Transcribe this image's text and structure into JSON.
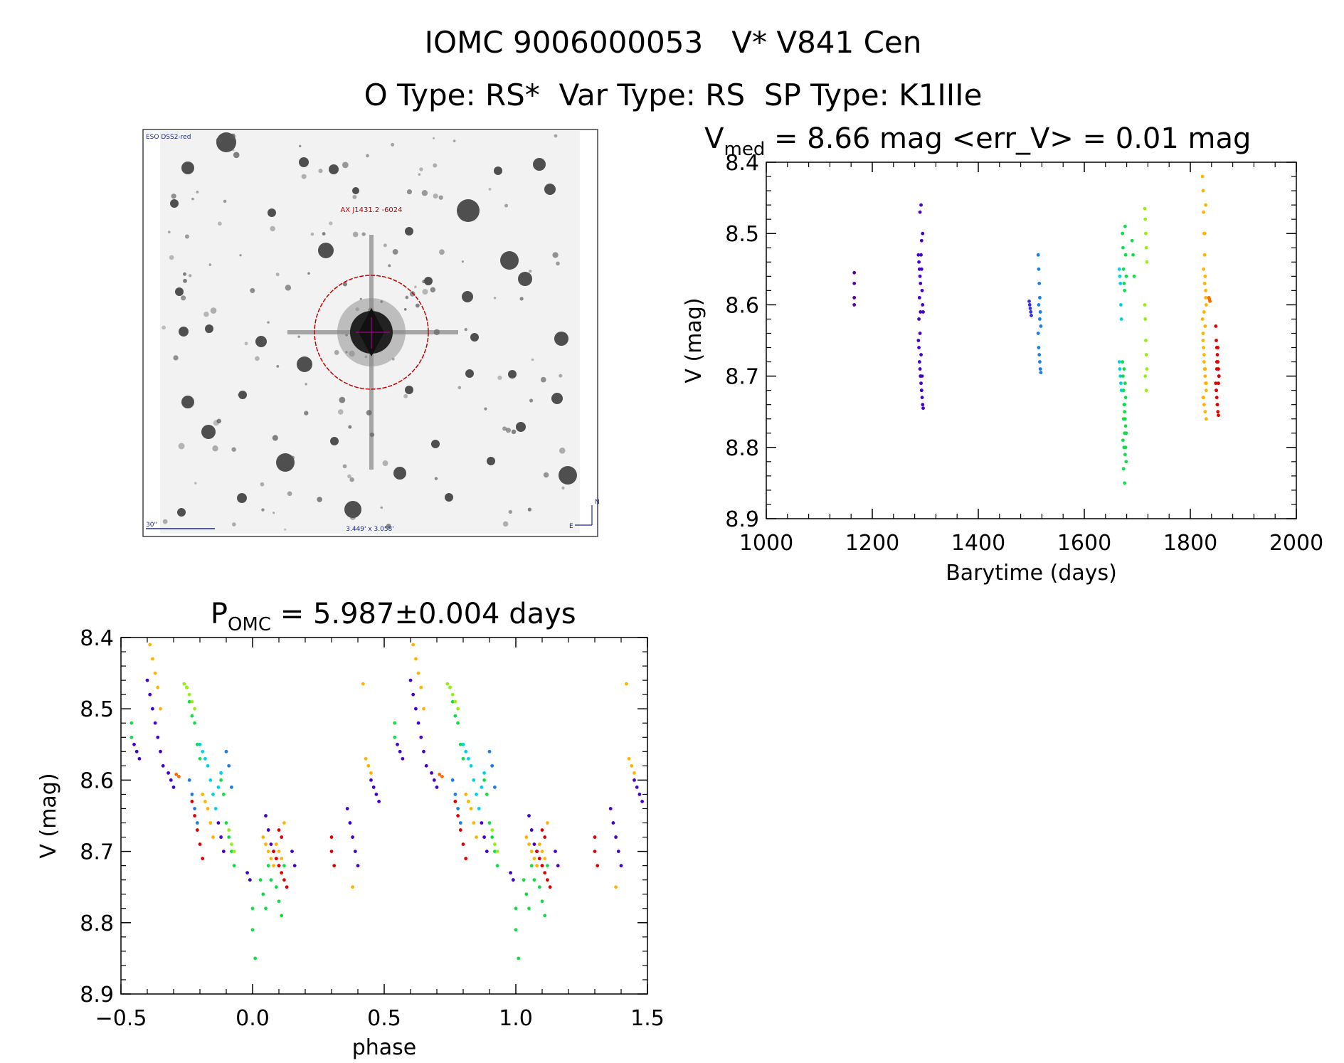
{
  "header": {
    "title_line1": "IOMC 9006000053   V* V841 Cen",
    "title_line2": "O Type: RS*  Var Type: RS  SP Type: K1IIIe"
  },
  "finder_chart": {
    "survey_label": "ESO DSS2-red",
    "target_label": "AX J1431.2 -6024",
    "scale_label": "30\"",
    "fov_label": "3.449' x 3.058'",
    "north_label": "N",
    "east_label": "E"
  },
  "colors": {
    "purple": "#5500aa",
    "indigo": "#4400cc",
    "blue": "#1e7de0",
    "cyan": "#00d0f0",
    "green": "#11dd44",
    "lime": "#99ee11",
    "orange": "#ffb300",
    "deep_orange": "#ff6a00",
    "red": "#e00000",
    "circle": "#c00000",
    "crosshair": "#aa0088"
  },
  "chart_data": [
    {
      "id": "light_curve",
      "type": "scatter",
      "title_main": "V",
      "title_sub": "med",
      "title_rest": " = 8.66 mag <err_V> = 0.01 mag",
      "xlabel": "Barytime (days)",
      "ylabel": "V (mag)",
      "xlim": [
        1000,
        2000
      ],
      "ylim": [
        8.9,
        8.4
      ],
      "xticks": [
        1000,
        1200,
        1400,
        1600,
        1800,
        2000
      ],
      "xtick_labels": [
        "1000",
        "1200",
        "1400",
        "1600",
        "1800",
        "2000"
      ],
      "yticks": [
        8.4,
        8.5,
        8.6,
        8.7,
        8.8,
        8.9
      ],
      "ytick_labels": [
        "8.4",
        "8.5",
        "8.6",
        "8.7",
        "8.8",
        "8.9"
      ],
      "series": [
        {
          "name": "season-1",
          "color": "#5500aa",
          "x": [
            1166,
            1166,
            1166,
            1166
          ],
          "y": [
            8.555,
            8.57,
            8.59,
            8.6
          ]
        },
        {
          "name": "season-2",
          "color": "#4400cc",
          "x": [
            1287,
            1288,
            1289,
            1290,
            1291,
            1292,
            1293,
            1294,
            1295,
            1296,
            1287,
            1288,
            1289,
            1290,
            1291,
            1292,
            1293,
            1294,
            1295,
            1296,
            1288,
            1290,
            1292,
            1294,
            1289,
            1291,
            1293,
            1295,
            1290,
            1292,
            1291,
            1293
          ],
          "y": [
            8.53,
            8.54,
            8.55,
            8.56,
            8.57,
            8.53,
            8.55,
            8.58,
            8.6,
            8.61,
            8.65,
            8.66,
            8.68,
            8.69,
            8.7,
            8.71,
            8.72,
            8.73,
            8.74,
            8.745,
            8.62,
            8.64,
            8.67,
            8.7,
            8.59,
            8.61,
            8.51,
            8.5,
            8.47,
            8.46,
            8.7,
            8.72
          ]
        },
        {
          "name": "season-3",
          "color": "#3030dd",
          "x": [
            1496,
            1497,
            1498,
            1499,
            1500
          ],
          "y": [
            8.595,
            8.6,
            8.605,
            8.61,
            8.615
          ]
        },
        {
          "name": "season-4",
          "color": "#1e7de0",
          "x": [
            1513,
            1514,
            1515,
            1516,
            1517,
            1518,
            1513,
            1514,
            1515,
            1516,
            1517,
            1518,
            1514,
            1516
          ],
          "y": [
            8.53,
            8.55,
            8.57,
            8.59,
            8.61,
            8.63,
            8.64,
            8.66,
            8.67,
            8.68,
            8.69,
            8.695,
            8.6,
            8.62
          ]
        },
        {
          "name": "season-5",
          "color": "#00d0f0",
          "x": [
            1666,
            1667,
            1668,
            1669,
            1670,
            1666,
            1667,
            1668,
            1669,
            1670
          ],
          "y": [
            8.55,
            8.56,
            8.57,
            8.6,
            8.62,
            8.68,
            8.69,
            8.7,
            8.71,
            8.72
          ]
        },
        {
          "name": "season-6",
          "color": "#11dd44",
          "x": [
            1672,
            1673,
            1674,
            1675,
            1676,
            1677,
            1678,
            1679,
            1672,
            1673,
            1674,
            1675,
            1676,
            1677,
            1678,
            1679,
            1673,
            1675,
            1677,
            1679,
            1674,
            1676,
            1678,
            1675,
            1677,
            1676,
            1690,
            1692,
            1694,
            1674,
            1676,
            1678
          ],
          "y": [
            8.5,
            8.52,
            8.55,
            8.57,
            8.58,
            8.49,
            8.53,
            8.56,
            8.68,
            8.7,
            8.72,
            8.74,
            8.75,
            8.76,
            8.77,
            8.78,
            8.79,
            8.8,
            8.81,
            8.82,
            8.83,
            8.85,
            8.73,
            8.69,
            8.71,
            8.74,
            8.51,
            8.53,
            8.56,
            8.76,
            8.78,
            8.8
          ]
        },
        {
          "name": "season-7",
          "color": "#99ee11",
          "x": [
            1714,
            1715,
            1716,
            1717,
            1718,
            1714,
            1715,
            1716,
            1717,
            1718,
            1715,
            1717
          ],
          "y": [
            8.465,
            8.48,
            8.5,
            8.52,
            8.54,
            8.6,
            8.62,
            8.65,
            8.67,
            8.69,
            8.7,
            8.72
          ]
        },
        {
          "name": "season-8",
          "color": "#ffb300",
          "x": [
            1823,
            1824,
            1825,
            1826,
            1827,
            1828,
            1829,
            1830,
            1823,
            1824,
            1825,
            1826,
            1827,
            1828,
            1829,
            1830,
            1824,
            1826,
            1828,
            1830,
            1825,
            1827,
            1829,
            1826,
            1828,
            1824,
            1826,
            1828,
            1830,
            1825,
            1827,
            1829
          ],
          "y": [
            8.42,
            8.44,
            8.47,
            8.5,
            8.53,
            8.56,
            8.58,
            8.6,
            8.62,
            8.64,
            8.66,
            8.68,
            8.69,
            8.7,
            8.71,
            8.72,
            8.73,
            8.74,
            8.75,
            8.76,
            8.55,
            8.57,
            8.59,
            8.61,
            8.63,
            8.65,
            8.67,
            8.69,
            8.71,
            8.73,
            8.5,
            8.46
          ]
        },
        {
          "name": "season-9",
          "color": "#ff6a00",
          "x": [
            1835,
            1836,
            1837
          ],
          "y": [
            8.59,
            8.592,
            8.595
          ]
        },
        {
          "name": "season-10",
          "color": "#e00000",
          "x": [
            1848,
            1849,
            1850,
            1851,
            1852,
            1853,
            1854,
            1848,
            1849,
            1850,
            1851,
            1852,
            1853,
            1854,
            1850,
            1852,
            1849,
            1851,
            1853,
            1850
          ],
          "y": [
            8.63,
            8.65,
            8.66,
            8.67,
            8.68,
            8.69,
            8.7,
            8.71,
            8.72,
            8.73,
            8.74,
            8.75,
            8.755,
            8.7,
            8.68,
            8.66,
            8.72,
            8.74,
            8.71,
            8.69
          ]
        }
      ]
    },
    {
      "id": "phased_curve",
      "type": "scatter",
      "title_main": "P",
      "title_sub": "OMC",
      "title_rest": " = 5.987±0.004 days",
      "xlabel": "phase",
      "ylabel": "V (mag)",
      "xlim": [
        -0.5,
        1.5
      ],
      "ylim": [
        8.9,
        8.4
      ],
      "xticks": [
        -0.5,
        0.0,
        0.5,
        1.0,
        1.5
      ],
      "xtick_labels": [
        "−0.5",
        "0.0",
        "0.5",
        "1.0",
        "1.5"
      ],
      "yticks": [
        8.4,
        8.5,
        8.6,
        8.7,
        8.8,
        8.9
      ],
      "ytick_labels": [
        "8.4",
        "8.5",
        "8.6",
        "8.7",
        "8.8",
        "8.9"
      ],
      "series": [
        {
          "name": "green",
          "color": "#11dd44",
          "x": [
            -0.46,
            -0.46,
            -0.25,
            -0.24,
            -0.23,
            -0.22,
            -0.21,
            -0.2,
            -0.12,
            -0.11,
            -0.1,
            -0.09,
            -0.08,
            -0.07,
            -0.01,
            0.0,
            0.0,
            0.01,
            0.03,
            0.04,
            0.05,
            0.06,
            0.07,
            0.08,
            0.09,
            0.1,
            0.11,
            0.12
          ],
          "y": [
            8.52,
            8.54,
            8.47,
            8.49,
            8.51,
            8.52,
            8.55,
            8.57,
            8.6,
            8.62,
            8.66,
            8.68,
            8.7,
            8.72,
            8.74,
            8.78,
            8.81,
            8.85,
            8.74,
            8.76,
            8.78,
            8.72,
            8.74,
            8.7,
            8.75,
            8.77,
            8.79,
            8.72
          ]
        },
        {
          "name": "lime",
          "color": "#99ee11",
          "x": [
            -0.26,
            -0.25,
            -0.24,
            -0.23,
            -0.22,
            -0.09,
            -0.08,
            -0.07
          ],
          "y": [
            8.465,
            8.47,
            8.48,
            8.49,
            8.5,
            8.67,
            8.69,
            8.7
          ]
        },
        {
          "name": "cyan",
          "color": "#00d0f0",
          "x": [
            -0.2,
            -0.19,
            -0.18,
            -0.17,
            -0.16,
            -0.15,
            -0.14,
            -0.13,
            -0.12
          ],
          "y": [
            8.55,
            8.56,
            8.57,
            8.58,
            8.6,
            8.62,
            8.64,
            8.61,
            8.59
          ]
        },
        {
          "name": "blue",
          "color": "#1e7de0",
          "x": [
            -0.24,
            -0.23,
            -0.22,
            -0.21,
            -0.1,
            -0.09,
            -0.08
          ],
          "y": [
            8.6,
            8.62,
            8.64,
            8.66,
            8.56,
            8.58,
            8.61
          ]
        },
        {
          "name": "purple",
          "color": "#4400cc",
          "x": [
            -0.45,
            -0.44,
            -0.43,
            -0.4,
            -0.39,
            -0.38,
            -0.37,
            -0.36,
            -0.35,
            -0.34,
            -0.32,
            -0.31,
            -0.3,
            -0.13,
            -0.12,
            -0.11,
            -0.02,
            -0.01,
            0.05,
            0.06,
            0.07,
            0.08,
            0.09,
            0.1,
            0.15,
            0.16,
            0.36,
            0.37,
            0.38,
            0.39,
            0.4,
            0.45,
            0.46,
            0.47,
            0.48
          ],
          "y": [
            8.55,
            8.56,
            8.57,
            8.46,
            8.48,
            8.5,
            8.52,
            8.54,
            8.56,
            8.58,
            8.59,
            8.6,
            8.61,
            8.66,
            8.68,
            8.7,
            8.73,
            8.74,
            8.65,
            8.67,
            8.69,
            8.7,
            8.71,
            8.72,
            8.7,
            8.72,
            8.64,
            8.66,
            8.68,
            8.7,
            8.72,
            8.6,
            8.61,
            8.62,
            8.63
          ]
        },
        {
          "name": "orange",
          "color": "#ffb300",
          "x": [
            -0.39,
            -0.38,
            -0.37,
            -0.36,
            -0.35,
            -0.19,
            -0.18,
            -0.17,
            -0.16,
            -0.15,
            0.04,
            0.05,
            0.06,
            0.07,
            0.08,
            0.09,
            0.1,
            0.11,
            0.12,
            0.42,
            0.43,
            0.44,
            0.45,
            0.38
          ],
          "y": [
            8.41,
            8.43,
            8.45,
            8.47,
            8.5,
            8.62,
            8.63,
            8.64,
            8.66,
            8.68,
            8.68,
            8.69,
            8.7,
            8.71,
            8.72,
            8.69,
            8.7,
            8.71,
            8.66,
            8.465,
            8.57,
            8.58,
            8.59,
            8.75
          ]
        },
        {
          "name": "deep_orange",
          "color": "#ff6a00",
          "x": [
            -0.29,
            -0.28
          ],
          "y": [
            8.592,
            8.595
          ]
        },
        {
          "name": "red",
          "color": "#e00000",
          "x": [
            -0.23,
            -0.22,
            -0.21,
            -0.2,
            -0.19,
            0.08,
            0.09,
            0.1,
            0.11,
            0.12,
            0.13,
            0.1,
            0.11,
            0.3,
            0.31,
            0.3
          ],
          "y": [
            8.63,
            8.65,
            8.67,
            8.69,
            8.71,
            8.7,
            8.71,
            8.72,
            8.73,
            8.74,
            8.75,
            8.67,
            8.68,
            8.7,
            8.72,
            8.68
          ]
        }
      ]
    }
  ]
}
